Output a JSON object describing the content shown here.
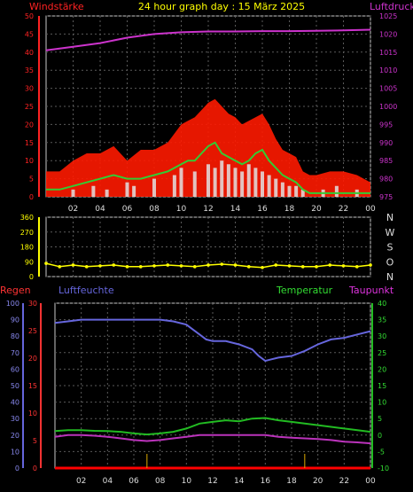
{
  "title": "24 hour graph day : 15 März 2025",
  "colors": {
    "background": "#000000",
    "frame": "#c8c8c8",
    "grid": "#5a5a5a",
    "wind_avg": "#33cc33",
    "gust": "#ff1a00",
    "rain": "#e0e0e0",
    "pressure": "#cc33cc",
    "direction": "#ffff00",
    "humidity": "#6666dd",
    "temperature": "#22bb22",
    "dewpoint": "#bb33bb",
    "rain_bottom": "#ff0000",
    "rain_labels": "#ff3333"
  },
  "x_ticks": [
    "02",
    "04",
    "06",
    "08",
    "10",
    "12",
    "14",
    "16",
    "18",
    "20",
    "22",
    "00"
  ],
  "chart_data": [
    {
      "type": "line",
      "label": "wind_pressure",
      "y_left_label": "Windstärke",
      "y_right_label": "Luftdruck",
      "y_left_ticks": [
        0,
        5,
        10,
        15,
        20,
        25,
        30,
        35,
        40,
        45,
        50
      ],
      "y_right_ticks": [
        975,
        980,
        985,
        990,
        995,
        1000,
        1005,
        1010,
        1015,
        1020,
        1025
      ],
      "ylim_left": [
        0,
        50
      ],
      "ylim_right": [
        975,
        1025
      ],
      "grid": true,
      "series": [
        {
          "name": "gusts",
          "role": "gust",
          "axis": "left",
          "x": [
            0,
            1,
            2,
            3,
            4,
            5,
            6,
            7,
            8,
            9,
            10,
            10.5,
            11,
            11.5,
            12,
            12.5,
            13,
            13.5,
            14,
            14.5,
            15,
            15.5,
            16,
            16.5,
            17,
            17.5,
            18,
            18.5,
            19,
            19.5,
            20,
            21,
            22,
            23,
            24
          ],
          "y": [
            7,
            7,
            10,
            12,
            12,
            14,
            10,
            13,
            13,
            15,
            20,
            21,
            22,
            24,
            26,
            27,
            25,
            23,
            22,
            20,
            21,
            22,
            23,
            20,
            16,
            13,
            12,
            11,
            7,
            6,
            6,
            7,
            7,
            6,
            4
          ]
        },
        {
          "name": "wind average",
          "role": "avg",
          "axis": "left",
          "x": [
            0,
            1,
            2,
            3,
            4,
            5,
            6,
            7,
            8,
            9,
            10,
            10.5,
            11,
            11.5,
            12,
            12.5,
            13,
            13.5,
            14,
            14.5,
            15,
            15.5,
            16,
            16.5,
            17,
            17.5,
            18,
            18.5,
            19,
            19.5,
            20,
            21,
            22,
            23,
            24
          ],
          "y": [
            2,
            2,
            3,
            4,
            5,
            6,
            5,
            5,
            6,
            7,
            9,
            10,
            10,
            12,
            14,
            15,
            12,
            11,
            10,
            9,
            10,
            12,
            13,
            10,
            8,
            6,
            5,
            4,
            2,
            1,
            1,
            1,
            1,
            1,
            1
          ]
        },
        {
          "name": "pressure",
          "role": "pressure",
          "axis": "right",
          "x": [
            0,
            2,
            4,
            6,
            8,
            10,
            12,
            14,
            16,
            18,
            20,
            22,
            24
          ],
          "y": [
            1015.5,
            1016.5,
            1017.5,
            1019,
            1020,
            1020.5,
            1020.7,
            1020.7,
            1020.8,
            1020.8,
            1020.9,
            1021,
            1021.2
          ]
        },
        {
          "name": "rain",
          "role": "rain",
          "axis": "left",
          "x": [
            2,
            3.5,
            4.5,
            6,
            6.5,
            8,
            9.5,
            10,
            11,
            12,
            12.5,
            13,
            13.5,
            14,
            14.5,
            15,
            15.5,
            16,
            16.5,
            17,
            17.5,
            18,
            18.5,
            19,
            20.5,
            21.5,
            23
          ],
          "y": [
            2,
            3,
            2,
            4,
            3,
            5,
            6,
            8,
            7,
            9,
            8,
            10,
            9,
            8,
            7,
            9,
            8,
            7,
            6,
            5,
            4,
            3,
            3,
            2,
            2,
            3,
            2
          ]
        }
      ]
    },
    {
      "type": "scatter",
      "label": "wind_direction",
      "y_ticks": [
        0,
        90,
        180,
        270,
        360
      ],
      "ylim": [
        0,
        360
      ],
      "compass": [
        "N",
        "W",
        "S",
        "O",
        "N"
      ],
      "grid": true,
      "series": [
        {
          "name": "wind direction",
          "role": "direction",
          "x": [
            0,
            1,
            2,
            3,
            4,
            5,
            6,
            7,
            8,
            9,
            10,
            11,
            12,
            13,
            14,
            15,
            16,
            17,
            18,
            19,
            20,
            21,
            22,
            23,
            24
          ],
          "y": [
            80,
            60,
            70,
            60,
            65,
            70,
            60,
            60,
            65,
            70,
            65,
            60,
            70,
            75,
            70,
            60,
            55,
            70,
            65,
            60,
            60,
            70,
            65,
            60,
            70
          ]
        }
      ]
    },
    {
      "type": "line",
      "label": "temp_humidity",
      "legend": [
        "Regen",
        "Luftfeuchte",
        "Temperatur",
        "Taupunkt"
      ],
      "y_humidity_ticks": [
        0,
        10,
        20,
        30,
        40,
        50,
        60,
        70,
        80,
        90,
        100
      ],
      "y_rain_ticks": [
        0,
        5,
        10,
        15,
        20,
        25,
        30
      ],
      "y_temp_ticks": [
        -10,
        -5,
        0,
        5,
        10,
        15,
        20,
        25,
        30,
        35,
        40
      ],
      "ylim_humidity": [
        0,
        100
      ],
      "ylim_temp": [
        -10,
        40
      ],
      "ylim_rain": [
        0,
        30
      ],
      "grid": true,
      "series": [
        {
          "name": "Luftfeuchte",
          "role": "humidity",
          "axis": "humidity",
          "x": [
            0,
            1,
            2,
            3,
            4,
            5,
            6,
            7,
            8,
            9,
            10,
            10.5,
            11,
            11.5,
            12,
            13,
            14,
            15,
            15.5,
            16,
            16.5,
            17,
            18,
            19,
            20,
            21,
            22,
            23,
            24
          ],
          "y": [
            88,
            89,
            90,
            90,
            90,
            90,
            90,
            90,
            90,
            89,
            87,
            84,
            81,
            78,
            77,
            77,
            75,
            72,
            68,
            65,
            66,
            67,
            68,
            71,
            75,
            78,
            79,
            81,
            83
          ]
        },
        {
          "name": "Temperatur",
          "role": "temperature",
          "axis": "temp",
          "x": [
            0,
            1,
            2,
            3,
            4,
            5,
            6,
            7,
            8,
            9,
            10,
            11,
            12,
            13,
            14,
            15,
            16,
            17,
            18,
            19,
            20,
            21,
            22,
            23,
            24
          ],
          "y": [
            1.2,
            1.5,
            1.5,
            1.3,
            1.2,
            1.0,
            0.5,
            0.2,
            0.5,
            1.0,
            2.0,
            3.5,
            4.0,
            4.5,
            4.2,
            5.0,
            5.2,
            4.5,
            4.0,
            3.5,
            3.0,
            2.5,
            2.0,
            1.5,
            1.0
          ]
        },
        {
          "name": "Taupunkt",
          "role": "dewpoint",
          "axis": "temp",
          "x": [
            0,
            1,
            2,
            3,
            4,
            5,
            6,
            7,
            8,
            9,
            10,
            11,
            12,
            13,
            14,
            15,
            16,
            17,
            18,
            19,
            20,
            21,
            22,
            23,
            24
          ],
          "y": [
            -0.5,
            0,
            0,
            -0.2,
            -0.5,
            -1.0,
            -1.5,
            -1.8,
            -1.5,
            -1.0,
            -0.5,
            0,
            0,
            0,
            0,
            0,
            0,
            -0.5,
            -0.8,
            -1.0,
            -1.2,
            -1.5,
            -2.0,
            -2.2,
            -2.5
          ]
        },
        {
          "name": "Regen",
          "role": "rain_bottom",
          "axis": "rain",
          "x": [
            0,
            6,
            12,
            18,
            24
          ],
          "y": [
            0,
            0,
            0,
            0,
            0
          ]
        }
      ]
    }
  ]
}
